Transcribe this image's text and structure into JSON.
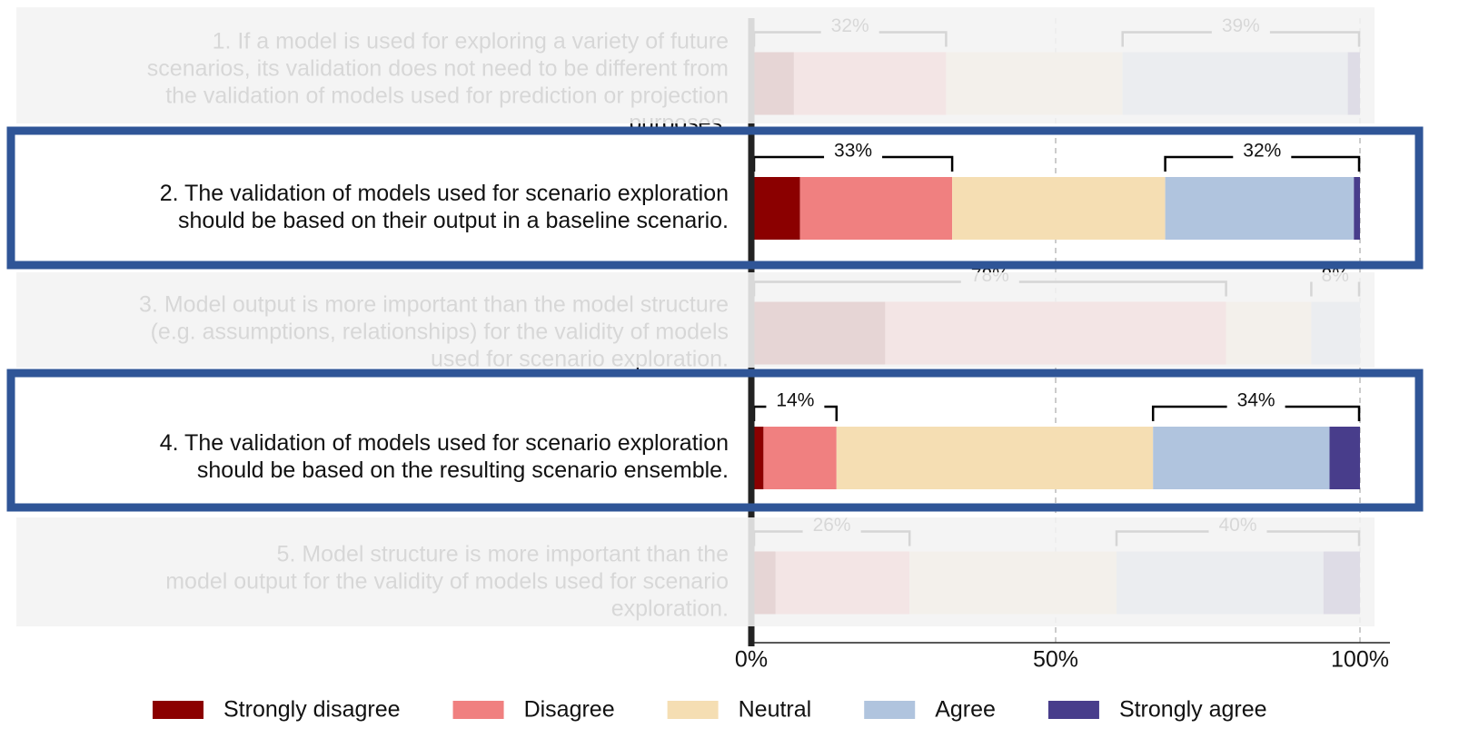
{
  "chart_data": {
    "type": "diverging_bar",
    "categories": [
      [
        "1. If a model is used for exploring a variety of future",
        "scenarios, its validation does not need to be different from",
        "the validation of models used for prediction or projection",
        "purposes."
      ],
      [
        "2. The validation of models used for scenario exploration",
        "should be based on their output in a baseline scenario."
      ],
      [
        "3. Model output is more important than the model structure",
        "(e.g. assumptions, relationships) for the validity of models",
        "used for scenario exploration."
      ],
      [
        "4. The validation of models used for scenario exploration",
        "should be based on the resulting scenario ensemble."
      ],
      [
        "5. Model structure is more important than the",
        "model output for the validity of models used for scenario",
        "exploration."
      ]
    ],
    "series": [
      {
        "name": "Strongly disagree",
        "color": "#8b0000",
        "values": [
          7,
          8,
          22,
          2,
          4
        ]
      },
      {
        "name": "Disagree",
        "color": "#f08080",
        "values": [
          25,
          25,
          56,
          12,
          22
        ]
      },
      {
        "name": "Neutral",
        "color": "#f5deb3",
        "values": [
          29,
          35,
          14,
          52,
          34
        ]
      },
      {
        "name": "Agree",
        "color": "#b0c4de",
        "values": [
          37,
          31,
          8,
          29,
          34
        ]
      },
      {
        "name": "Strongly agree",
        "color": "#483d8b",
        "values": [
          2,
          1,
          0,
          5,
          6
        ]
      }
    ],
    "bracket_labels": [
      [
        "32%",
        "39%"
      ],
      [
        "33%",
        "32%"
      ],
      [
        "78%",
        "8%"
      ],
      [
        "14%",
        "34%"
      ],
      [
        "26%",
        "40%"
      ]
    ],
    "highlight": [
      false,
      true,
      false,
      true,
      false
    ],
    "xlim": [
      0,
      100
    ],
    "xticks": [
      {
        "value": 0,
        "label": "0%"
      },
      {
        "value": 50,
        "label": "50%"
      },
      {
        "value": 100,
        "label": "100%"
      }
    ],
    "legend": "bottom"
  }
}
